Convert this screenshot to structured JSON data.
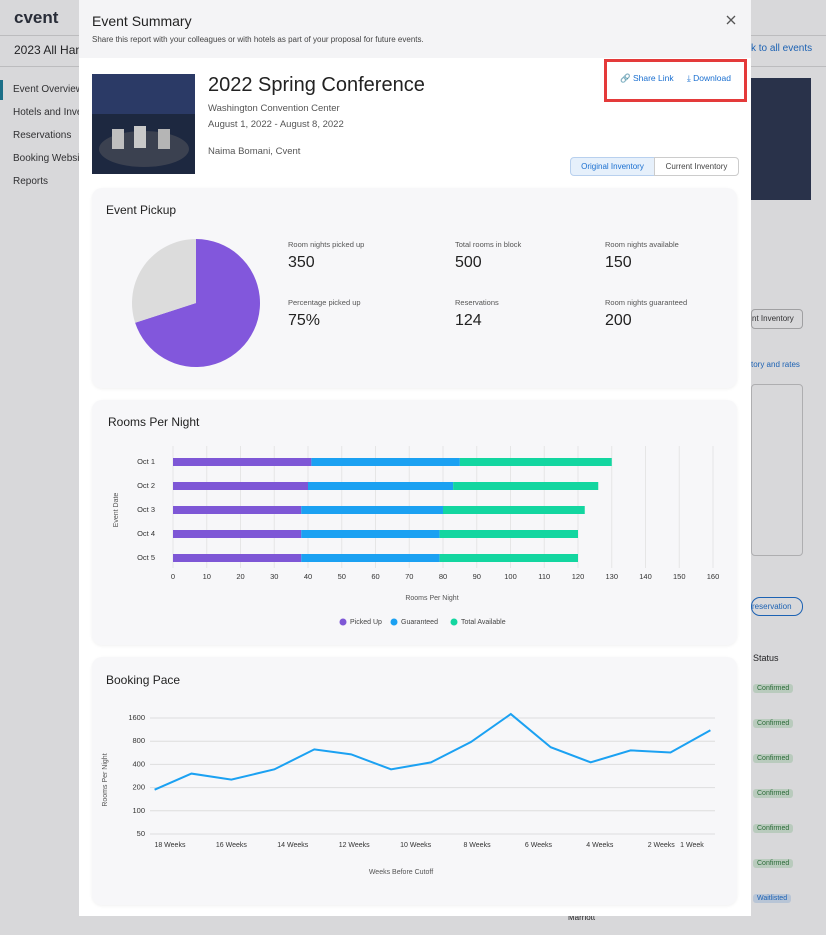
{
  "background": {
    "logo": "cvent",
    "page_title": "2023 All Hand",
    "nav": [
      "Event Overview",
      "Hotels and Inven",
      "Reservations",
      "Booking Website",
      "Reports"
    ],
    "back_link": "k to all events",
    "inventory_tab": "nt Inventory",
    "rates_link": "tory and rates",
    "reservation_button": "reservation",
    "status_header": "Status",
    "statuses": [
      "Confirmed",
      "Confirmed",
      "Confirmed",
      "Confirmed",
      "Confirmed",
      "Confirmed",
      "Waitlisted"
    ],
    "hotel": "Marriott"
  },
  "modal": {
    "title": "Event Summary",
    "subtitle": "Share this report with your colleagues or with hotels as part of your proposal for future events.",
    "event": {
      "name": "2022 Spring Conference",
      "venue": "Washington Convention Center",
      "dates": "August 1, 2022 - August 8, 2022",
      "owner": "Naima Bomani, Cvent"
    },
    "actions": {
      "share": "Share Link",
      "download": "Download"
    },
    "inventory_toggle": [
      "Original Inventory",
      "Current Inventory"
    ],
    "stats": [
      {
        "label": "Room nights picked up",
        "value": "350"
      },
      {
        "label": "Total rooms in block",
        "value": "500"
      },
      {
        "label": "Room nights available",
        "value": "150"
      },
      {
        "label": "Percentage picked up",
        "value": "75%"
      },
      {
        "label": "Reservations",
        "value": "124"
      },
      {
        "label": "Room nights guaranteed",
        "value": "200"
      }
    ]
  },
  "chart_data": [
    {
      "type": "pie",
      "title": "Event Pickup",
      "values": [
        350,
        150
      ],
      "colors": [
        "#8257dc",
        "#dcdcdc"
      ]
    },
    {
      "type": "hbar-stacked",
      "title": "Rooms Per Night",
      "y_label": "Event Date",
      "x_label": "Rooms Per Night",
      "categories": [
        "Oct 1",
        "Oct 2",
        "Oct 3",
        "Oct 4",
        "Oct 5"
      ],
      "series": [
        {
          "name": "Picked Up",
          "color": "#7e57d6",
          "values": [
            41,
            40,
            38,
            38,
            38
          ]
        },
        {
          "name": "Guaranteed",
          "color": "#1ba1f2",
          "values": [
            44,
            43,
            42,
            41,
            41
          ]
        },
        {
          "name": "Total Available",
          "color": "#13d6a0",
          "values": [
            45,
            43,
            42,
            41,
            41
          ]
        }
      ],
      "xlim": [
        0,
        160
      ],
      "xticks": [
        0,
        10,
        20,
        30,
        40,
        50,
        60,
        70,
        80,
        90,
        100,
        110,
        120,
        130,
        140,
        150,
        160
      ],
      "grid": true,
      "legend": "bottom"
    },
    {
      "type": "line",
      "title": "Booking Pace",
      "y_label": "Rooms Per Night",
      "x_label": "Weeks Before Cutoff",
      "x": [
        18.5,
        17.3,
        16,
        14.6,
        13.3,
        12.1,
        10.8,
        9.5,
        8.2,
        6.9,
        5.6,
        4.3,
        3,
        1.7,
        0.4
      ],
      "series": [
        {
          "name": "Booking Pace",
          "color": "#1ba1f2",
          "values": [
            188,
            304,
            254,
            345,
            626,
            540,
            345,
            425,
            780,
            1800,
            668,
            425,
            608,
            570,
            1110
          ]
        }
      ],
      "xlim": [
        18.65,
        0.25
      ],
      "xticks": [
        {
          "value": 18,
          "label": "18 Weeks"
        },
        {
          "value": 16,
          "label": "16 Weeks"
        },
        {
          "value": 14,
          "label": "14 Weeks"
        },
        {
          "value": 12,
          "label": "12 Weeks"
        },
        {
          "value": 10,
          "label": "10 Weeks"
        },
        {
          "value": 8,
          "label": "8 Weeks"
        },
        {
          "value": 6,
          "label": "6 Weeks"
        },
        {
          "value": 4,
          "label": "4 Weeks"
        },
        {
          "value": 2,
          "label": "2 Weeks"
        },
        {
          "value": 1,
          "label": "1 Week"
        }
      ],
      "ylim": [
        50,
        2000
      ],
      "yticks": [
        50,
        100,
        200,
        400,
        800,
        1600
      ],
      "ylog": 2,
      "grid": true
    }
  ]
}
